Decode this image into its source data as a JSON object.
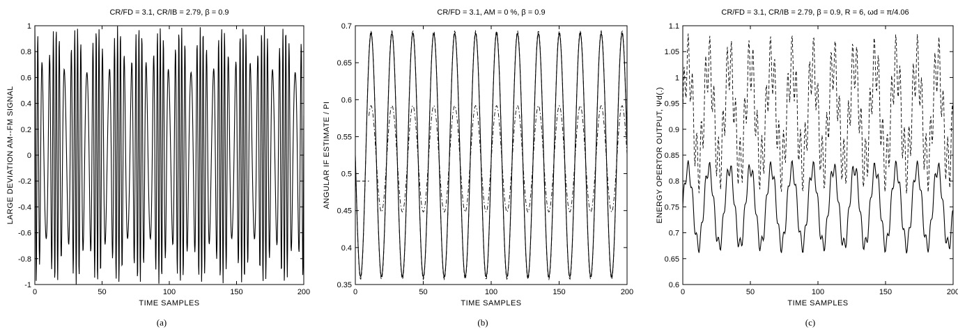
{
  "figure": {
    "panels": [
      {
        "title": "CR/FD = 3.1, CR/IB = 2.79,          β = 0.9",
        "xlabel": "TIME   SAMPLES",
        "ylabel": "LARGE  DEVIATION   AM--FM  SIGNAL",
        "caption": "(a)"
      },
      {
        "title": "CR/FD = 3.1, AM = 0 %,               β = 0.9",
        "xlabel": "TIME   SAMPLES",
        "ylabel": "ANGULAR  IF  ESTIMATE / PI",
        "caption": "(b)"
      },
      {
        "title": "CR/FD = 3.1, CR/IB = 2.79, β = 0.9, R = 6, ωd = π/4.06",
        "xlabel": "TIME   SAMPLES",
        "ylabel": "ENERGY  OPERTOR  OUTPUT,  Ψd(.)",
        "caption": "(c)"
      }
    ]
  },
  "chart_data": [
    {
      "type": "line",
      "title": "CR/FD = 3.1, CR/IB = 2.79,          β = 0.9",
      "xlabel": "TIME   SAMPLES",
      "ylabel": "LARGE  DEVIATION   AM--FM  SIGNAL",
      "xlim": [
        0,
        200
      ],
      "ylim": [
        -1,
        1
      ],
      "xticks": [
        0,
        50,
        100,
        150,
        200
      ],
      "yticks": [
        -1,
        -0.8,
        -0.6,
        -0.4,
        -0.2,
        0,
        0.2,
        0.4,
        0.6,
        0.8,
        1
      ],
      "xtick_labels": [
        "0",
        "50",
        "100",
        "150",
        "200"
      ],
      "ytick_labels": [
        "-1",
        "-0.8",
        "-0.6",
        "-0.4",
        "-0.2",
        "0",
        "0.2",
        "0.4",
        "0.6",
        "0.8",
        "1"
      ],
      "series": [
        {
          "style": "solid",
          "model": "am_fm",
          "params": {
            "x_start": 0,
            "x_end": 200,
            "step": 0.25,
            "carrier_rate": 0.31,
            "am_depth": 0.18,
            "am_rate": 0.0646,
            "fm_rate": 0.0646,
            "fm_index": 2.6
          }
        }
      ]
    },
    {
      "type": "line",
      "title": "CR/FD = 3.1, AM = 0 %,               β = 0.9",
      "xlabel": "TIME   SAMPLES",
      "ylabel": "ANGULAR  IF  ESTIMATE / PI",
      "xlim": [
        0,
        200
      ],
      "ylim": [
        0.35,
        0.7
      ],
      "xticks": [
        0,
        50,
        100,
        150,
        200
      ],
      "yticks": [
        0.35,
        0.4,
        0.45,
        0.5,
        0.55,
        0.6,
        0.65,
        0.7
      ],
      "xtick_labels": [
        "0",
        "50",
        "100",
        "150",
        "200"
      ],
      "ytick_labels": [
        "0.35",
        "0.4",
        "0.45",
        "0.5",
        "0.55",
        "0.6",
        "0.65",
        "0.7"
      ],
      "series": [
        {
          "style": "solid",
          "model": "sine",
          "params": {
            "x_start": 0,
            "x_end": 200,
            "step": 0.5,
            "mean": 0.525,
            "amplitude": 0.165,
            "period": 15.4,
            "phase_deg": 180
          }
        },
        {
          "style": "dashed",
          "model": "sine",
          "params": {
            "x_start": 0,
            "x_end": 200,
            "step": 0.5,
            "mean": 0.525,
            "amplitude": 0.168,
            "period": 15.4,
            "phase_deg": 180
          }
        },
        {
          "style": "dashdot",
          "model": "sine",
          "params": {
            "x_start": 10,
            "x_end": 200,
            "step": 0.5,
            "mean": 0.52,
            "amplitude": 0.072,
            "period": 15.4,
            "phase_deg": 180
          }
        }
      ],
      "annotations": [
        {
          "type": "segment",
          "style": "dashed",
          "x": [
            1,
            10
          ],
          "y": [
            0.49,
            0.49
          ]
        }
      ]
    },
    {
      "type": "line",
      "title": "CR/FD = 3.1, CR/IB = 2.79, β = 0.9, R = 6, ωd = π/4.06",
      "xlabel": "TIME   SAMPLES",
      "ylabel": "ENERGY  OPERTOR  OUTPUT,  Ψd(.)",
      "xlim": [
        0,
        200
      ],
      "ylim": [
        0.6,
        1.1
      ],
      "xticks": [
        0,
        50,
        100,
        150,
        200
      ],
      "yticks": [
        0.6,
        0.65,
        0.7,
        0.75,
        0.8,
        0.85,
        0.9,
        0.95,
        1,
        1.05,
        1.1
      ],
      "xtick_labels": [
        "0",
        "50",
        "100",
        "150",
        "200"
      ],
      "ytick_labels": [
        "0.6",
        "0.65",
        "0.7",
        "0.75",
        "0.8",
        "0.85",
        "0.9",
        "0.95",
        "1",
        "1.05",
        "1.1"
      ],
      "series": [
        {
          "style": "solid",
          "model": "ripple",
          "params": {
            "x_start": 0,
            "x_end": 200,
            "step": 0.5,
            "mean": 0.75,
            "amplitude": 0.075,
            "period": 15.4,
            "ripple_amp": 0.015,
            "ripple_period": 3.2
          }
        },
        {
          "style": "dashed",
          "model": "ripple",
          "params": {
            "x_start": 0,
            "x_end": 200,
            "step": 0.5,
            "mean": 0.93,
            "amplitude": 0.1,
            "period": 15.4,
            "ripple_amp": 0.055,
            "ripple_period": 3.2
          }
        }
      ]
    }
  ]
}
